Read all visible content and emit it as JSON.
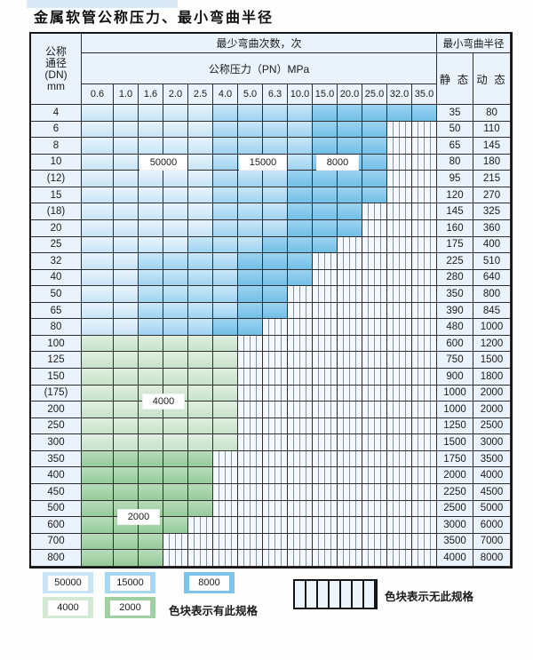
{
  "title": "金属软管公称压力、最小弯曲半径",
  "table": {
    "header": {
      "dn_lines": [
        "公称",
        "通径",
        "(DN)",
        "mm"
      ],
      "bend_cycles": "最少弯曲次数，次",
      "pressure": "公称压力（PN）MPa",
      "radius": "最小弯曲半径",
      "static_label": "静 态",
      "dynamic_label": "动 态",
      "pressure_columns": [
        "0.6",
        "1.0",
        "1.6",
        "2.0",
        "2.5",
        "4.0",
        "5.0",
        "6.3",
        "10.0",
        "15.0",
        "20.0",
        "25.0",
        "32.0",
        "35.0"
      ]
    },
    "cell_code_meaning": {
      "L": "50000次-浅蓝",
      "M": "15000次-中蓝",
      "D": "8000次-深蓝",
      "G": "4000次-浅绿",
      "E": "2000次-深绿",
      "H": "无此规格-竖线"
    },
    "rows": [
      {
        "dn": "4",
        "cells": "LLLLLMMMMDDDDD",
        "static": "35",
        "dynamic": "80"
      },
      {
        "dn": "6",
        "cells": "LLLLLMMMMDDDHH",
        "static": "50",
        "dynamic": "110"
      },
      {
        "dn": "8",
        "cells": "LLLLLMMMMDDDHH",
        "static": "65",
        "dynamic": "145"
      },
      {
        "dn": "10",
        "cells": "LLLLLMMMMDDDHH",
        "static": "80",
        "dynamic": "180"
      },
      {
        "dn": "(12)",
        "cells": "LLLLLMMMDDDDHH",
        "static": "95",
        "dynamic": "215"
      },
      {
        "dn": "15",
        "cells": "LLLLLMMMDDDDHH",
        "static": "120",
        "dynamic": "270"
      },
      {
        "dn": "(18)",
        "cells": "LLLLLMMMDDDHHH",
        "static": "145",
        "dynamic": "325"
      },
      {
        "dn": "20",
        "cells": "LLLLLMMMDDDHHH",
        "static": "160",
        "dynamic": "360"
      },
      {
        "dn": "25",
        "cells": "LLLLMMMDDDHHHH",
        "static": "175",
        "dynamic": "400"
      },
      {
        "dn": "32",
        "cells": "LLMMMMDDDHHHHH",
        "static": "225",
        "dynamic": "510"
      },
      {
        "dn": "40",
        "cells": "LLMMMMDDDHHHHH",
        "static": "280",
        "dynamic": "640"
      },
      {
        "dn": "50",
        "cells": "LLMMMMDDHHHHHH",
        "static": "350",
        "dynamic": "800"
      },
      {
        "dn": "65",
        "cells": "LLMMMMDDHHHHHH",
        "static": "390",
        "dynamic": "845"
      },
      {
        "dn": "80",
        "cells": "LLMMMDDHHHHHHH",
        "static": "480",
        "dynamic": "1000"
      },
      {
        "dn": "100",
        "cells": "GGGGGGHHHHHHHH",
        "static": "600",
        "dynamic": "1200"
      },
      {
        "dn": "125",
        "cells": "GGGGGGHHHHHHHH",
        "static": "750",
        "dynamic": "1500"
      },
      {
        "dn": "150",
        "cells": "GGGGGGHHHHHHHH",
        "static": "900",
        "dynamic": "1800"
      },
      {
        "dn": "(175)",
        "cells": "GGGGGGHHHHHHHH",
        "static": "1000",
        "dynamic": "2000"
      },
      {
        "dn": "200",
        "cells": "GGGGGGHHHHHHHH",
        "static": "1000",
        "dynamic": "2000"
      },
      {
        "dn": "250",
        "cells": "GGGGGGHHHHHHHH",
        "static": "1250",
        "dynamic": "2500"
      },
      {
        "dn": "300",
        "cells": "GGGGGGHHHHHHHH",
        "static": "1500",
        "dynamic": "3000"
      },
      {
        "dn": "350",
        "cells": "EEEEEHHHHHHHHH",
        "static": "1750",
        "dynamic": "3500"
      },
      {
        "dn": "400",
        "cells": "EEEEEHHHHHHHHH",
        "static": "2000",
        "dynamic": "4000"
      },
      {
        "dn": "450",
        "cells": "EEEEEHHHHHHHHH",
        "static": "2250",
        "dynamic": "4500"
      },
      {
        "dn": "500",
        "cells": "EEEEEHHHHHHHHH",
        "static": "2500",
        "dynamic": "5000"
      },
      {
        "dn": "600",
        "cells": "EEEEHHHHHHHHHH",
        "static": "3000",
        "dynamic": "6000"
      },
      {
        "dn": "700",
        "cells": "EEEHHHHHHHHHHH",
        "static": "3500",
        "dynamic": "7000"
      },
      {
        "dn": "800",
        "cells": "EEEHHHHHHHHHHH",
        "static": "4000",
        "dynamic": "8000"
      }
    ],
    "cell_labels": [
      {
        "text": "50000",
        "row_dn": "10",
        "col_start": 2,
        "col_end": 3,
        "at": "center"
      },
      {
        "text": "15000",
        "row_dn": "10",
        "col_start": 6,
        "col_end": 7,
        "at": "center"
      },
      {
        "text": "8000",
        "row_dn": "10",
        "col_start": 9,
        "col_end": 10,
        "at": "center"
      },
      {
        "text": "4000",
        "row_dn": "200",
        "col_start": 2,
        "col_end": 3,
        "at": "top"
      },
      {
        "text": "2000",
        "row_dn": "600",
        "col_start": 1,
        "col_end": 2,
        "at": "top"
      }
    ]
  },
  "legend": {
    "swatches": [
      {
        "label": "50000",
        "type": "L"
      },
      {
        "label": "15000",
        "type": "M"
      },
      {
        "label": "8000",
        "type": "D"
      },
      {
        "label": "4000",
        "type": "G"
      },
      {
        "label": "2000",
        "type": "E"
      }
    ],
    "has_spec_text": "色块表示有此规格",
    "no_spec_text": "色块表示无此规格"
  },
  "colors": {
    "blue_50000": "#c9e4f6",
    "blue_15000": "#a5d6f2",
    "blue_8000": "#7cc4ea",
    "green_4000": "#d4e9d4",
    "green_2000": "#9fd0a2",
    "hatch_line": "#8593a0",
    "grid_line": "#2e2e2e",
    "header_bg": "#eaf3fb"
  }
}
